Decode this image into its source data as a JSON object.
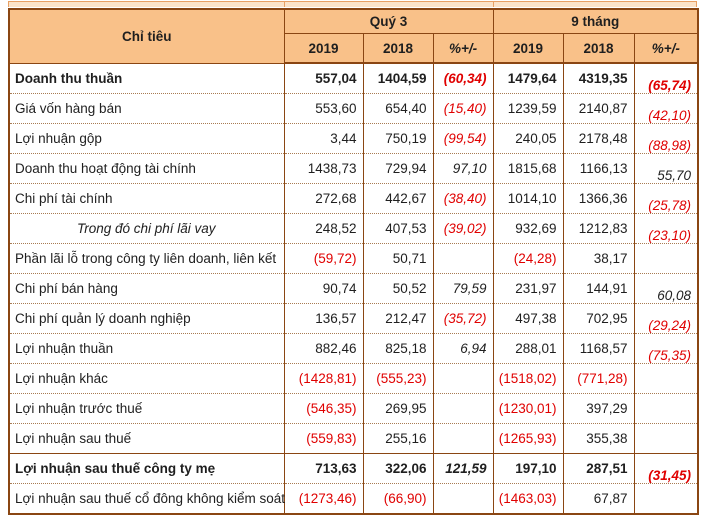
{
  "colors": {
    "header_bg": "#F9C189",
    "border_dark": "#8A4613",
    "border_dotted": "#A87B52",
    "sliver_border": "#E8A064",
    "sliver_bg": "#FBE3C9",
    "negative_red": "#E00000",
    "text": "#1F1F1F"
  },
  "table": {
    "header": {
      "criteria": "Chỉ tiêu",
      "groups": [
        {
          "label": "Quý 3"
        },
        {
          "label": "9 tháng"
        }
      ],
      "subcolumns": [
        "2019",
        "2018",
        "%+/-"
      ]
    },
    "rows": [
      {
        "label": "Doanh thu thuần",
        "bold": true,
        "values": [
          "557,04",
          "1404,59",
          "(60,34)",
          "1479,64",
          "4319,35",
          "(65,74)"
        ]
      },
      {
        "label": "Giá vốn hàng bán",
        "values": [
          "553,60",
          "654,40",
          "(15,40)",
          "1239,59",
          "2140,87",
          "(42,10)"
        ]
      },
      {
        "label": "Lợi nhuận gộp",
        "values": [
          "3,44",
          "750,19",
          "(99,54)",
          "240,05",
          "2178,48",
          "(88,98)"
        ]
      },
      {
        "label": "Doanh thu hoạt động tài chính",
        "values": [
          "1438,73",
          "729,94",
          "97,10",
          "1815,68",
          "1166,13",
          "55,70"
        ]
      },
      {
        "label": "Chi phí tài chính",
        "values": [
          "272,68",
          "442,67",
          "(38,40)",
          "1014,10",
          "1366,36",
          "(25,78)"
        ]
      },
      {
        "label": "Trong đó chi phí lãi vay",
        "italic_center": true,
        "values": [
          "248,52",
          "407,53",
          "(39,02)",
          "932,69",
          "1212,83",
          "(23,10)"
        ]
      },
      {
        "label": "Phần lãi lỗ trong công ty liên doanh, liên kết",
        "values": [
          "(59,72)",
          "50,71",
          "",
          "(24,28)",
          "38,17",
          ""
        ]
      },
      {
        "label": "Chi phí bán hàng",
        "values": [
          "90,74",
          "50,52",
          "79,59",
          "231,97",
          "144,91",
          "60,08"
        ]
      },
      {
        "label": "Chi phí quản lý doanh nghiệp",
        "values": [
          "136,57",
          "212,47",
          "(35,72)",
          "497,38",
          "702,95",
          "(29,24)"
        ]
      },
      {
        "label": "Lợi nhuận thuần",
        "values": [
          "882,46",
          "825,18",
          "6,94",
          "288,01",
          "1168,57",
          "(75,35)"
        ]
      },
      {
        "label": "Lợi nhuận khác",
        "values": [
          "(1428,81)",
          "(555,23)",
          "",
          "(1518,02)",
          "(771,28)",
          ""
        ]
      },
      {
        "label": "Lợi nhuận trước thuế",
        "values": [
          "(546,35)",
          "269,95",
          "",
          "(1230,01)",
          "397,29",
          ""
        ]
      },
      {
        "label": "Lợi nhuận sau thuế",
        "values": [
          "(559,83)",
          "255,16",
          "",
          "(1265,93)",
          "355,38",
          ""
        ]
      },
      {
        "label": "Lợi nhuận sau thuế công ty mẹ",
        "bold": true,
        "solid_top": true,
        "values": [
          "713,63",
          "322,06",
          "121,59",
          "197,10",
          "287,51",
          "(31,45)"
        ]
      },
      {
        "label": "Lợi nhuận sau thuế cổ đông không kiểm soát",
        "values": [
          "(1273,46)",
          "(66,90)",
          "",
          "(1463,03)",
          "67,87",
          ""
        ]
      }
    ]
  }
}
